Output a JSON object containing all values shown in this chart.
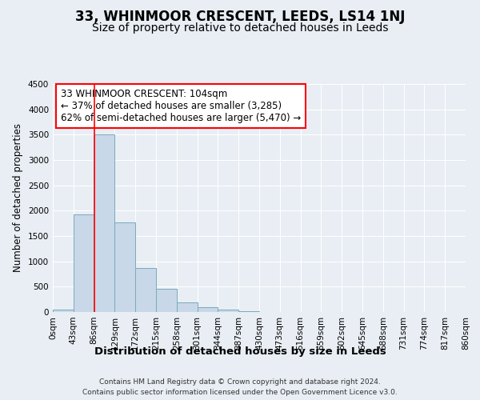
{
  "title": "33, WHINMOOR CRESCENT, LEEDS, LS14 1NJ",
  "subtitle": "Size of property relative to detached houses in Leeds",
  "xlabel": "Distribution of detached houses by size in Leeds",
  "ylabel": "Number of detached properties",
  "bar_values": [
    50,
    1920,
    3500,
    1770,
    870,
    460,
    185,
    90,
    40,
    10,
    0,
    0,
    0,
    0,
    0,
    0,
    0,
    0,
    0,
    0
  ],
  "bin_labels": [
    "0sqm",
    "43sqm",
    "86sqm",
    "129sqm",
    "172sqm",
    "215sqm",
    "258sqm",
    "301sqm",
    "344sqm",
    "387sqm",
    "430sqm",
    "473sqm",
    "516sqm",
    "559sqm",
    "602sqm",
    "645sqm",
    "688sqm",
    "731sqm",
    "774sqm",
    "817sqm",
    "860sqm"
  ],
  "bar_color": "#c8d8e8",
  "bar_edge_color": "#7aaabb",
  "ylim": [
    0,
    4500
  ],
  "yticks": [
    0,
    500,
    1000,
    1500,
    2000,
    2500,
    3000,
    3500,
    4000,
    4500
  ],
  "red_line_x": 2,
  "annotation_line1": "33 WHINMOOR CRESCENT: 104sqm",
  "annotation_line2": "← 37% of detached houses are smaller (3,285)",
  "annotation_line3": "62% of semi-detached houses are larger (5,470) →",
  "background_color": "#e8eef4",
  "plot_bg_color": "#e8eef4",
  "footer_line1": "Contains HM Land Registry data © Crown copyright and database right 2024.",
  "footer_line2": "Contains public sector information licensed under the Open Government Licence v3.0.",
  "grid_color": "#ffffff",
  "title_fontsize": 12,
  "subtitle_fontsize": 10,
  "xlabel_fontsize": 9.5,
  "ylabel_fontsize": 8.5,
  "tick_fontsize": 7.5,
  "annotation_fontsize": 8.5,
  "footer_fontsize": 6.5
}
